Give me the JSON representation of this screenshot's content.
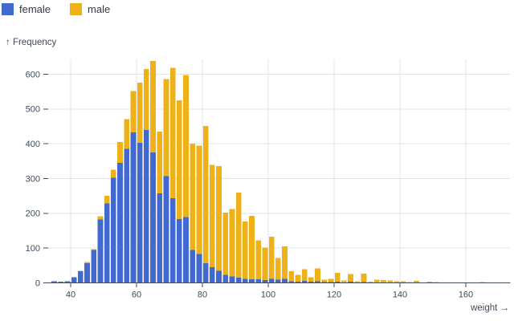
{
  "legend": {
    "items": [
      {
        "label": "female",
        "color": "#4269d0"
      },
      {
        "label": "male",
        "color": "#efb118"
      }
    ]
  },
  "axes": {
    "y_title": "↑ Frequency",
    "x_title": "weight →"
  },
  "colors": {
    "female": "#4269d0",
    "male": "#efb118",
    "grid": "#e1e3e6",
    "axis": "#3f4a5a",
    "background": "#ffffff"
  },
  "chart_data": {
    "type": "bar",
    "subtype": "stacked-histogram",
    "title": "",
    "xlabel": "weight",
    "ylabel": "Frequency",
    "legend_position": "top-left",
    "grid": true,
    "x_ticks": [
      40,
      60,
      80,
      100,
      120,
      140,
      160
    ],
    "y_ticks": [
      0,
      100,
      200,
      300,
      400,
      500,
      600
    ],
    "xlim": [
      33,
      174
    ],
    "ylim": [
      0,
      640
    ],
    "bin_width": 2,
    "bin_starts": [
      34,
      36,
      38,
      40,
      42,
      44,
      46,
      48,
      50,
      52,
      54,
      56,
      58,
      60,
      62,
      64,
      66,
      68,
      70,
      72,
      74,
      76,
      78,
      80,
      82,
      84,
      86,
      88,
      90,
      92,
      94,
      96,
      98,
      100,
      102,
      104,
      106,
      108,
      110,
      112,
      114,
      116,
      118,
      120,
      122,
      124,
      126,
      128,
      130,
      132,
      134,
      136,
      138,
      140,
      142,
      144,
      146,
      148,
      150,
      152,
      154,
      156,
      158,
      160,
      162,
      164,
      166,
      168,
      170,
      172
    ],
    "series": [
      {
        "name": "female",
        "color": "#4269d0",
        "values": [
          5,
          3,
          5,
          16,
          34,
          57,
          95,
          182,
          229,
          302,
          345,
          385,
          433,
          403,
          440,
          375,
          257,
          307,
          244,
          184,
          189,
          95,
          83,
          56,
          45,
          35,
          23,
          18,
          15,
          12,
          10,
          10,
          8,
          12,
          9,
          12,
          5,
          4,
          6,
          3,
          5,
          2,
          2,
          3,
          1,
          3,
          0,
          2,
          0,
          0,
          0,
          0,
          0,
          0,
          0,
          0,
          0,
          0,
          0,
          0,
          0,
          0,
          0,
          0,
          0,
          0,
          0,
          0,
          0,
          0
        ]
      },
      {
        "name": "male",
        "color": "#efb118",
        "values": [
          0,
          0,
          0,
          0,
          1,
          3,
          2,
          9,
          21,
          23,
          60,
          86,
          118,
          173,
          175,
          263,
          178,
          279,
          374,
          341,
          409,
          305,
          312,
          395,
          294,
          301,
          179,
          194,
          245,
          165,
          183,
          112,
          94,
          121,
          63,
          93,
          28,
          19,
          33,
          13,
          37,
          7,
          10,
          26,
          6,
          22,
          5,
          24,
          4,
          9,
          8,
          7,
          5,
          5,
          2,
          6,
          0,
          3,
          2,
          1,
          0,
          1,
          0,
          1,
          1,
          2,
          1,
          1,
          0,
          1
        ]
      }
    ]
  }
}
